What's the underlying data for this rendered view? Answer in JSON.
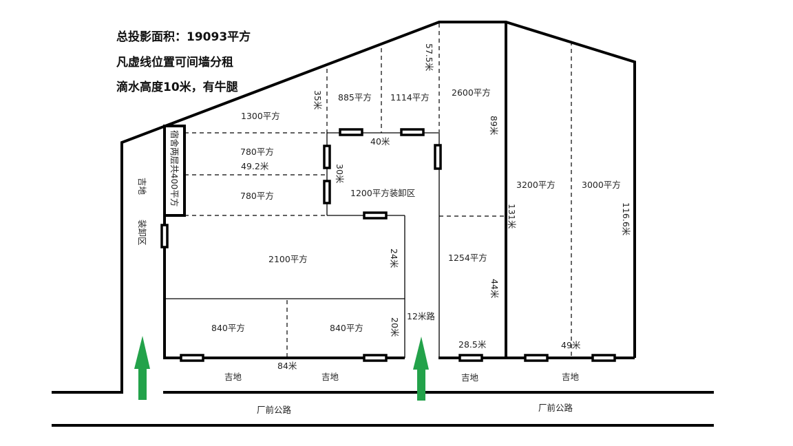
{
  "notes": [
    "总投影面积：19093平方",
    "凡虚线位置可间墙分租",
    "滴水高度10米，有牛腿"
  ],
  "areas": {
    "a1300": "1300平方",
    "a885": "885平方",
    "a1114": "1114平方",
    "a2600": "2600平方",
    "a780_top": "780平方",
    "a780_bottom": "780平方",
    "a1200": "1200平方装卸区",
    "a2100": "2100平方",
    "a840_left": "840平方",
    "a840_right": "840平方",
    "a1254": "1254平方",
    "a3200": "3200平方",
    "a3000": "3000平方",
    "dorm": "宿舍两层共400平方"
  },
  "dimensions": {
    "d57_5": "57.5米",
    "d35": "35米",
    "d40": "40米",
    "d49_2": "49.2米",
    "d30": "30米",
    "d89": "89米",
    "d131": "131米",
    "d116_6": "116.6米",
    "d24": "24米",
    "d20": "20米",
    "d84": "84米",
    "d44": "44米",
    "d28_5": "28.5米",
    "d49": "49米"
  },
  "ground": {
    "vacant_left": "吉地",
    "loading_left": "装卸区",
    "road12": "12米路",
    "vacant_b1": "吉地",
    "vacant_b2": "吉地",
    "vacant_b3": "吉地",
    "vacant_b4": "吉地",
    "road_front_left": "厂前公路",
    "road_front_right": "厂前公路"
  },
  "colors": {
    "arrow": "#23a24a"
  }
}
